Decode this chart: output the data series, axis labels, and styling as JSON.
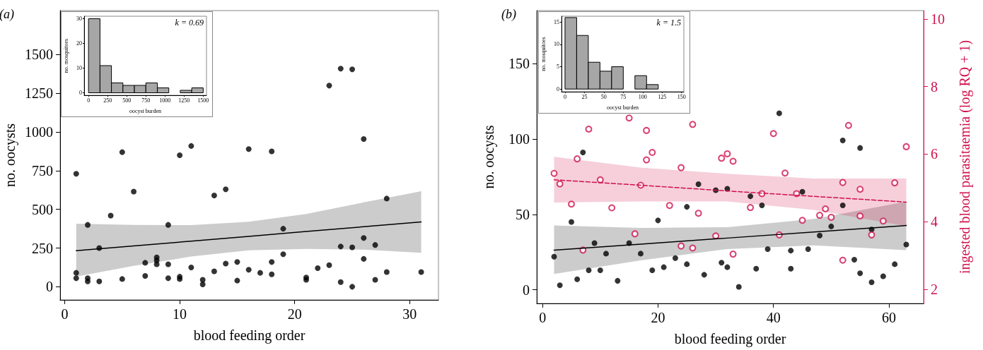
{
  "chart_data": [
    {
      "type": "scatter",
      "title": "(a)",
      "xlabel": "blood feeding order",
      "ylabel": "no. oocysts",
      "xlim": [
        -0.4,
        32.5
      ],
      "xticks": [
        0,
        10,
        20,
        30
      ],
      "ylim": [
        -85,
        1785
      ],
      "yticks": [
        0,
        250,
        500,
        750,
        1000,
        1250,
        1500
      ],
      "grid": false,
      "marker": "circle",
      "series": [
        {
          "type": "scatter",
          "color": "#000000",
          "x": [
            1,
            1,
            1,
            2,
            2,
            2,
            3,
            3,
            4,
            5,
            5,
            6,
            7,
            7,
            8,
            8,
            8,
            9,
            9,
            9,
            10,
            10,
            10,
            11,
            11,
            12,
            12,
            13,
            13,
            14,
            14,
            15,
            15,
            16,
            16,
            17,
            18,
            18,
            18,
            19,
            19,
            21,
            21,
            22,
            23,
            23,
            24,
            24,
            24,
            25,
            25,
            25,
            26,
            26,
            26,
            27,
            27,
            28,
            28,
            31
          ],
          "values": [
            730,
            90,
            55,
            400,
            55,
            35,
            250,
            35,
            460,
            870,
            50,
            615,
            155,
            70,
            190,
            170,
            145,
            400,
            145,
            55,
            850,
            65,
            50,
            910,
            125,
            45,
            15,
            590,
            100,
            630,
            150,
            160,
            40,
            890,
            110,
            90,
            875,
            160,
            80,
            375,
            210,
            60,
            45,
            120,
            1300,
            140,
            1410,
            260,
            30,
            1405,
            255,
            0,
            955,
            315,
            180,
            270,
            45,
            570,
            95,
            95
          ]
        },
        {
          "type": "line",
          "marker": "none",
          "color": "#000000",
          "line_style": "solid",
          "x": [
            1,
            6,
            11,
            16,
            21,
            26,
            31
          ],
          "values": [
            233,
            264,
            295,
            326,
            357,
            388,
            419
          ],
          "lower": [
            66,
            135,
            195,
            235,
            245,
            240,
            220
          ],
          "upper": [
            408,
            400,
            398,
            420,
            470,
            545,
            617
          ]
        }
      ]
    },
    {
      "type": "histogram",
      "xlabel": "oocyst burden",
      "ylabel": "no. mosquitoes",
      "annotations": [
        "k = 0.69"
      ],
      "color": "#a6a6a6",
      "bins": [
        0,
        150,
        300,
        450,
        600,
        750,
        900,
        1050,
        1200,
        1350,
        1500
      ],
      "values": [
        30,
        11,
        4,
        3,
        3,
        4,
        2,
        0,
        1,
        2
      ],
      "xlim": [
        -57,
        1543
      ],
      "xticks": [
        0,
        250,
        500,
        750,
        1000,
        1250,
        1500
      ],
      "ylim": [
        -1,
        31
      ],
      "yticks": [
        0,
        10,
        20,
        30
      ],
      "grid": false
    },
    {
      "type": "scatter",
      "title": "(b)",
      "xlabel": "blood feeding order",
      "ylabel": "no. oocysts",
      "y2label": "ingested blood parasitaemia (log RQ + 1)",
      "xlim": [
        -1,
        66
      ],
      "xticks": [
        0,
        20,
        40,
        60
      ],
      "ylim": [
        -9,
        185
      ],
      "yticks": [
        0,
        50,
        100,
        150
      ],
      "y2lim": [
        1.58,
        10.25
      ],
      "y2ticks": [
        2,
        4,
        6,
        8,
        10
      ],
      "grid": false,
      "marker": "circle",
      "series": [
        {
          "type": "scatter",
          "color": "#000000",
          "x": [
            2,
            3,
            5,
            6,
            7,
            8,
            9,
            10,
            11,
            13,
            15,
            17,
            19,
            20,
            21,
            23,
            25,
            25,
            27,
            28,
            30,
            31,
            32,
            32,
            34,
            36,
            37,
            38,
            39,
            41,
            43,
            43,
            45,
            46,
            48,
            50,
            52,
            52,
            54,
            55,
            55,
            57,
            57,
            59,
            61,
            63
          ],
          "values": [
            22,
            3,
            45,
            7,
            91,
            13,
            31,
            13,
            24,
            6,
            31,
            24,
            13,
            46,
            15,
            21,
            55,
            17,
            70,
            10,
            66,
            18,
            67,
            15,
            2,
            62,
            14,
            56,
            27,
            117,
            26,
            14,
            65,
            27,
            36,
            42,
            99,
            56,
            20,
            94,
            11,
            40,
            5,
            9,
            17,
            30
          ]
        },
        {
          "type": "line",
          "marker": "none",
          "color": "#000000",
          "line_style": "solid",
          "x": [
            2,
            17,
            32,
            47,
            63
          ],
          "values": [
            26.3,
            30.3,
            34.3,
            38.3,
            42.6
          ],
          "lower": [
            10.5,
            19.5,
            27,
            29.5,
            26.3
          ],
          "upper": [
            42.6,
            41,
            41.5,
            47,
            58.4
          ]
        },
        {
          "type": "scatter",
          "axis": "y2",
          "color": "#d0104c",
          "x": [
            2,
            3,
            5,
            6,
            7,
            8,
            10,
            12,
            15,
            16,
            17,
            18,
            18,
            19,
            22,
            24,
            24,
            26,
            26,
            27,
            30,
            31,
            32,
            33,
            33,
            36,
            38,
            40,
            41,
            42,
            44,
            45,
            48,
            49,
            50,
            52,
            52,
            53,
            55,
            55,
            57,
            59,
            61,
            63
          ],
          "values": [
            5.43,
            5.12,
            4.52,
            5.86,
            3.16,
            6.74,
            5.24,
            4.41,
            7.07,
            3.64,
            5.08,
            5.83,
            6.7,
            6.05,
            4.48,
            5.6,
            3.28,
            6.88,
            3.22,
            4.25,
            3.58,
            5.88,
            6.01,
            5.79,
            3.04,
            4.42,
            4.83,
            6.61,
            3.61,
            5.44,
            4.83,
            4.04,
            4.19,
            4.38,
            4.13,
            2.86,
            5.16,
            6.85,
            4.96,
            4.17,
            3.61,
            4.02,
            5.15,
            6.22
          ]
        },
        {
          "type": "line",
          "marker": "none",
          "axis": "y2",
          "color": "#d0104c",
          "line_style": "dashed",
          "x": [
            2,
            17,
            32,
            47,
            63
          ],
          "values": [
            5.24,
            5.08,
            4.91,
            4.75,
            4.58
          ],
          "lower": [
            4.57,
            4.6,
            4.6,
            4.35,
            3.87
          ],
          "upper": [
            5.92,
            5.6,
            5.42,
            5.28,
            5.28
          ]
        }
      ]
    },
    {
      "type": "histogram",
      "xlabel": "oocyst burden",
      "ylabel": "no. mosquitoes",
      "annotations": [
        "k = 1.5"
      ],
      "color": "#a6a6a6",
      "bins": [
        0,
        15,
        30,
        45,
        60,
        75,
        90,
        105,
        120,
        135,
        150
      ],
      "values": [
        16,
        12,
        6,
        4,
        5,
        0,
        3,
        1,
        0,
        0
      ],
      "xlim": [
        -4.5,
        153
      ],
      "xticks": [
        0,
        25,
        50,
        75,
        100,
        125,
        150
      ],
      "ylim": [
        -0.6,
        16.3
      ],
      "yticks": [
        0,
        5,
        10,
        15
      ],
      "grid": false
    }
  ]
}
